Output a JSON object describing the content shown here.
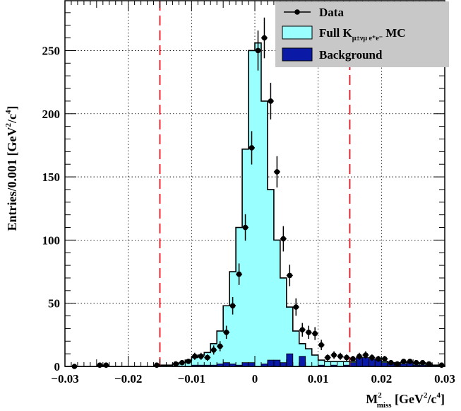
{
  "chart_data": {
    "type": "histogram",
    "xlabel": {
      "main": "M",
      "sup": "2",
      "sub": "miss",
      "unit_prefix": " [GeV",
      "unit_sup": "2",
      "unit_mid": "/c",
      "unit_sup2": "4",
      "unit_suffix": "]"
    },
    "ylabel": {
      "main": "Entries/0.001 [GeV",
      "sup": "2",
      "mid": "/c",
      "sup2": "4",
      "suffix": "]"
    },
    "xlim": [
      -0.03,
      0.03
    ],
    "ylim": [
      0,
      290
    ],
    "bin_width": 0.001,
    "x_ticks": [
      -0.03,
      -0.02,
      -0.01,
      0,
      0.01,
      0.02,
      0.03
    ],
    "x_tick_labels": [
      "−0.03",
      "−0.02",
      "−0.01",
      "0",
      "0.01",
      "0.02",
      "0.03"
    ],
    "y_ticks": [
      0,
      50,
      100,
      150,
      200,
      250
    ],
    "y_tick_labels": [
      "0",
      "50",
      "100",
      "150",
      "200",
      "250"
    ],
    "grid": true,
    "cut_lines": [
      -0.015,
      0.015
    ],
    "cut_line_color": "#e8101a",
    "mc_fill_color": "#99ffff",
    "background_fill_color": "#0a1aa6",
    "bins_low_edges": [
      -0.03,
      -0.029,
      -0.028,
      -0.027,
      -0.026,
      -0.025,
      -0.024,
      -0.023,
      -0.022,
      -0.021,
      -0.02,
      -0.019,
      -0.018,
      -0.017,
      -0.016,
      -0.015,
      -0.014,
      -0.013,
      -0.012,
      -0.011,
      -0.01,
      -0.009,
      -0.008,
      -0.007,
      -0.006,
      -0.005,
      -0.004,
      -0.003,
      -0.002,
      -0.001,
      0.0,
      0.001,
      0.002,
      0.003,
      0.004,
      0.005,
      0.006,
      0.007,
      0.008,
      0.009,
      0.01,
      0.011,
      0.012,
      0.013,
      0.014,
      0.015,
      0.016,
      0.017,
      0.018,
      0.019,
      0.02,
      0.021,
      0.022,
      0.023,
      0.024,
      0.025,
      0.026,
      0.027,
      0.028,
      0.029
    ],
    "mc_values": [
      0,
      0,
      0,
      0,
      0,
      0,
      0,
      0,
      0,
      0,
      0,
      0,
      0,
      0,
      0,
      1,
      1,
      2,
      3,
      5,
      7,
      9,
      11,
      18,
      28,
      48,
      75,
      110,
      172,
      250,
      256,
      210,
      140,
      100,
      70,
      47,
      28,
      18,
      14,
      9,
      5,
      4,
      4,
      4,
      4,
      4,
      5,
      5,
      5,
      4,
      4,
      3,
      3,
      3,
      3,
      2,
      2,
      2,
      1,
      1
    ],
    "background_values": [
      0,
      0,
      0,
      0,
      0,
      0,
      0,
      0,
      0,
      0,
      0,
      0,
      0,
      0,
      0,
      0,
      0,
      0,
      0,
      0,
      1,
      1,
      1,
      1,
      2,
      3,
      2,
      1,
      3,
      3,
      0,
      2,
      5,
      5,
      3,
      10,
      0,
      8,
      0,
      0,
      1,
      0,
      1,
      0,
      1,
      3,
      7,
      7,
      6,
      5,
      3,
      3,
      2,
      2,
      3,
      1,
      1,
      1,
      0,
      0
    ],
    "series": [
      {
        "name": "Data",
        "x": [
          -0.0285,
          -0.0245,
          -0.0235,
          -0.0155,
          -0.0125,
          -0.0115,
          -0.0105,
          -0.0095,
          -0.0085,
          -0.0075,
          -0.0065,
          -0.0055,
          -0.0045,
          -0.0035,
          -0.0025,
          -0.0015,
          -0.0005,
          0.0005,
          0.0015,
          0.0025,
          0.0035,
          0.0045,
          0.0055,
          0.0065,
          0.0075,
          0.0085,
          0.0095,
          0.0105,
          0.0115,
          0.0125,
          0.0135,
          0.0145,
          0.0155,
          0.0165,
          0.0175,
          0.0185,
          0.0195,
          0.0205,
          0.0215,
          0.0225,
          0.0235,
          0.0245,
          0.0255,
          0.0265,
          0.0275,
          0.0295
        ],
        "y": [
          0,
          1,
          1,
          1,
          2,
          3,
          4,
          8,
          8,
          7,
          13,
          16,
          27,
          48,
          73,
          110,
          173,
          250,
          260,
          210,
          154,
          101,
          72,
          47,
          29,
          27,
          26,
          17,
          7,
          9,
          8,
          7,
          6,
          8,
          9,
          7,
          6,
          6,
          3,
          2,
          4,
          4,
          3,
          3,
          2,
          1
        ],
        "err": [
          1,
          1,
          1,
          1,
          1.4,
          1.7,
          2,
          2.8,
          2.8,
          2.6,
          3.6,
          4,
          5.2,
          6.9,
          8.5,
          10.5,
          13.2,
          15.8,
          16.1,
          14.5,
          12.4,
          10,
          8.5,
          6.9,
          5.4,
          5.2,
          5.1,
          4.1,
          2.6,
          3,
          2.8,
          2.6,
          2.4,
          2.8,
          3,
          2.6,
          2.4,
          2.4,
          1.7,
          1.4,
          2,
          2,
          1.7,
          1.7,
          1.4,
          1
        ]
      }
    ],
    "legend": {
      "position": "top-right",
      "entries": [
        {
          "label": "Data",
          "type": "marker"
        },
        {
          "label_main": "Full K",
          "label_sub": "μ±νμ e⁺e⁻",
          "label_suffix": " MC",
          "type": "fill-mc"
        },
        {
          "label": "Background",
          "type": "fill-bg"
        }
      ]
    }
  }
}
